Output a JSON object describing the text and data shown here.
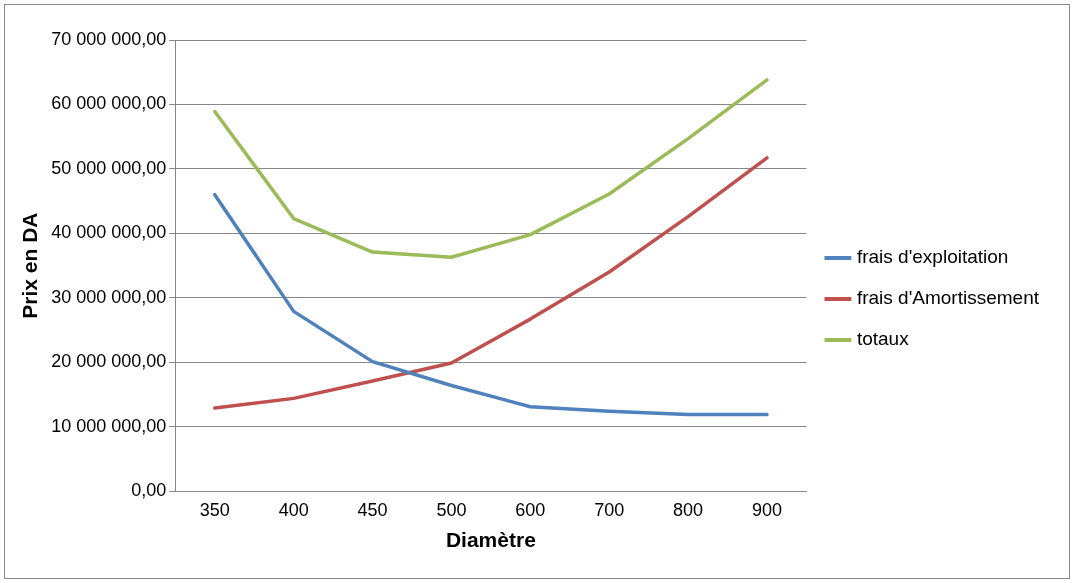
{
  "chart_data": {
    "type": "line",
    "xlabel": "Diamètre",
    "ylabel": "Prix en DA",
    "categories": [
      "350",
      "400",
      "450",
      "500",
      "600",
      "700",
      "800",
      "900"
    ],
    "series": [
      {
        "name": "frais d'exploitation",
        "color": "#4f81bd",
        "values": [
          46000000,
          27900000,
          20100000,
          16400000,
          13100000,
          12400000,
          11900000,
          11900000
        ]
      },
      {
        "name": "frais d'Amortissement",
        "color": "#c0504d",
        "values": [
          12900000,
          14400000,
          17100000,
          19900000,
          26700000,
          34000000,
          42600000,
          51700000
        ]
      },
      {
        "name": "totaux",
        "color": "#9bbb59",
        "values": [
          58900000,
          42300000,
          37100000,
          36300000,
          39800000,
          46100000,
          54700000,
          63800000
        ]
      }
    ],
    "ylim": [
      0,
      70000000
    ],
    "yticks": [
      {
        "value": 0,
        "label": "0,00"
      },
      {
        "value": 10000000,
        "label": "10 000 000,00"
      },
      {
        "value": 20000000,
        "label": "20 000 000,00"
      },
      {
        "value": 30000000,
        "label": "30 000 000,00"
      },
      {
        "value": 40000000,
        "label": "40 000 000,00"
      },
      {
        "value": 50000000,
        "label": "50 000 000,00"
      },
      {
        "value": 60000000,
        "label": "60 000 000,00"
      },
      {
        "value": 70000000,
        "label": "70 000 000,00"
      }
    ],
    "grid": "y",
    "legend": "right",
    "marker": "none",
    "line_style": "solid"
  }
}
